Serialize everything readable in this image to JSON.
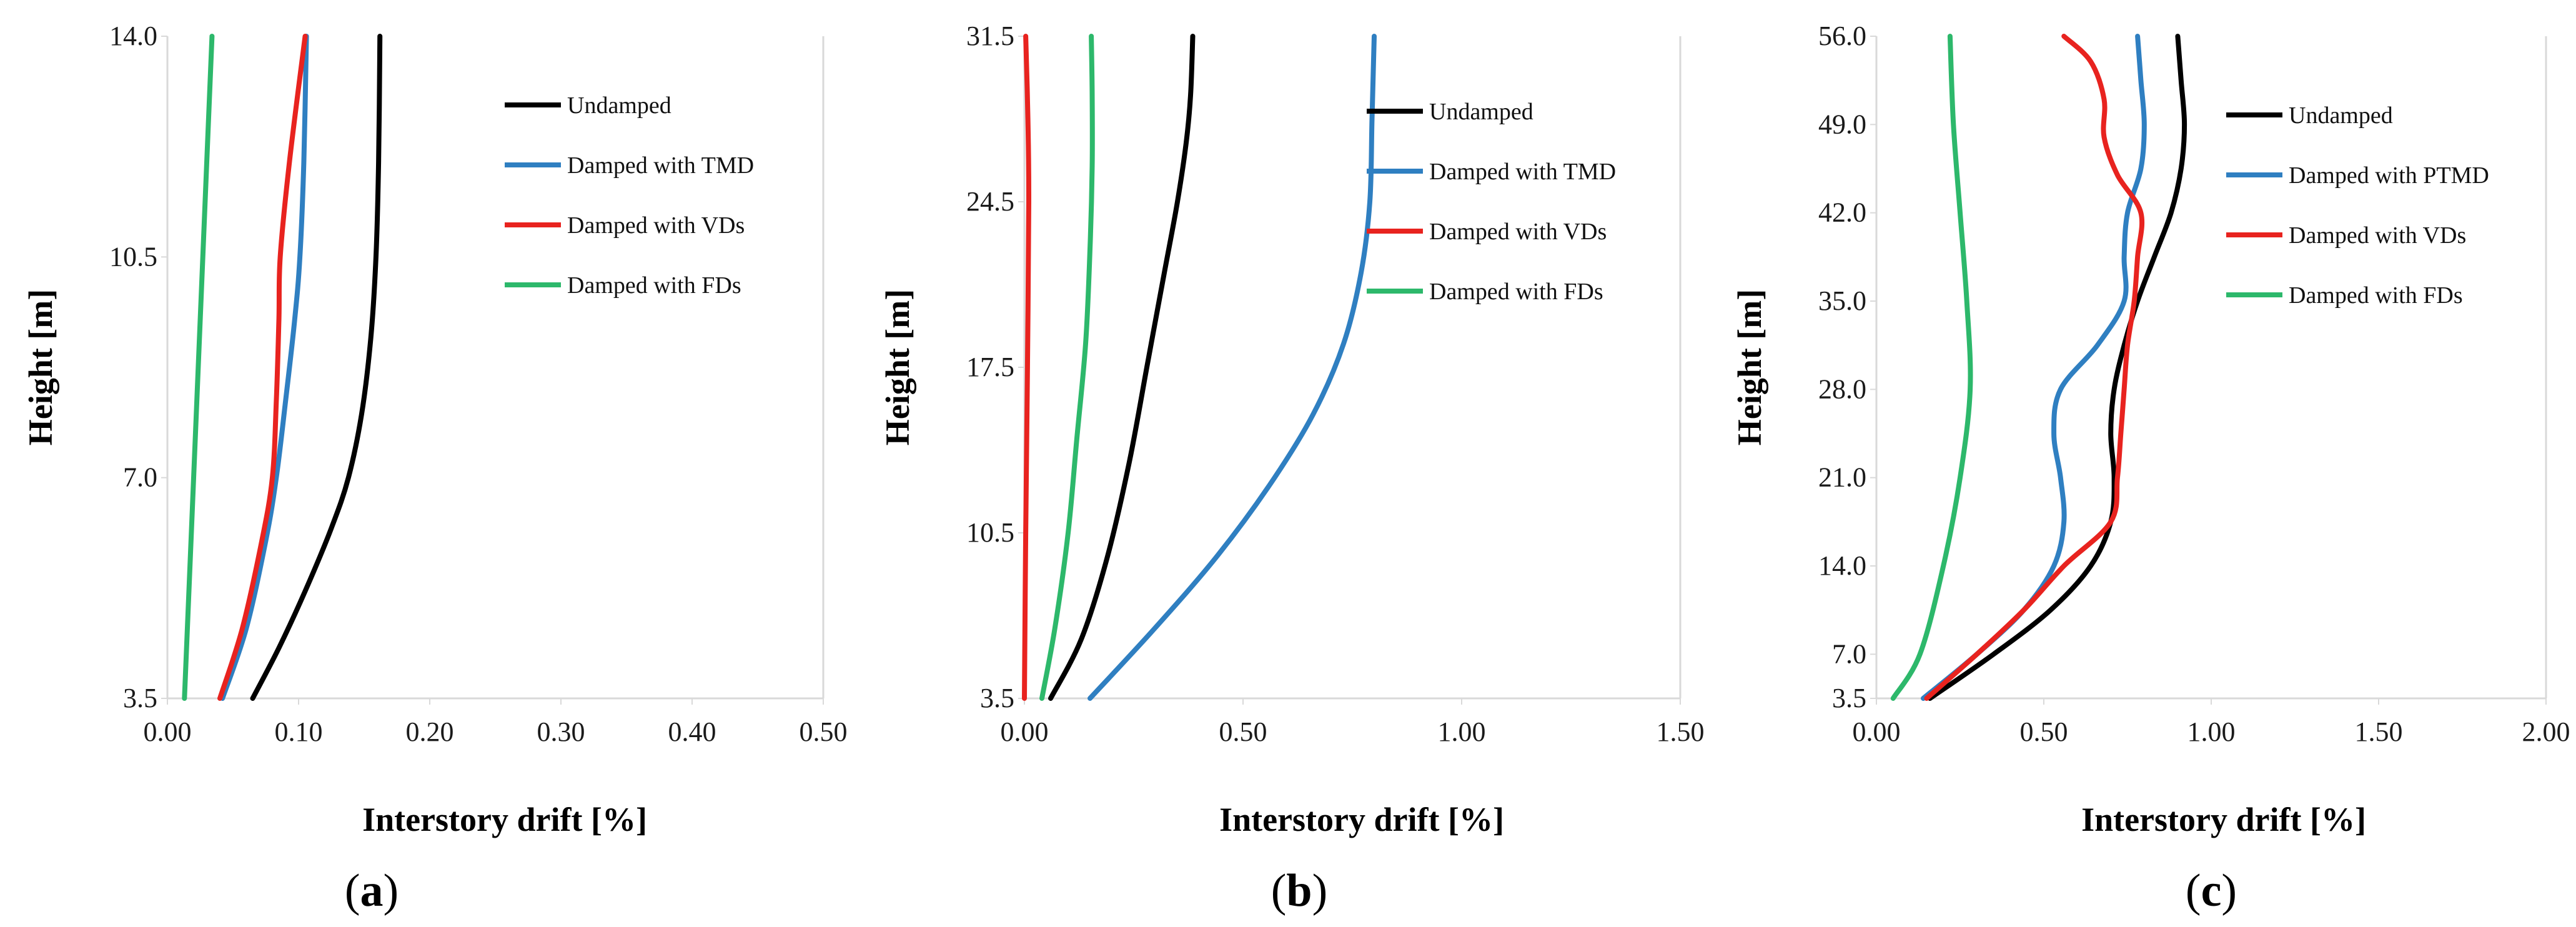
{
  "chart_data": [
    {
      "type": "line",
      "panel": "a",
      "title": "",
      "xlabel": "Interstory drift [%]",
      "ylabel": "Height [m]",
      "xlim": [
        0,
        0.5
      ],
      "ylim": [
        3.5,
        14.0
      ],
      "xtick_values": [
        0,
        0.1,
        0.2,
        0.3,
        0.4,
        0.5
      ],
      "xticks": [
        "0.00",
        "0.10",
        "0.20",
        "0.30",
        "0.40",
        "0.50"
      ],
      "ytick_values": [
        3.5,
        7.0,
        10.5,
        14.0
      ],
      "yticks": [
        "3.5",
        "7.0",
        "10.5",
        "14.0"
      ],
      "legend_position": "top-right",
      "series": [
        {
          "name": "Undamped",
          "color": "#000000",
          "points": [
            [
              0.065,
              3.5
            ],
            [
              0.085,
              4.3
            ],
            [
              0.105,
              5.2
            ],
            [
              0.125,
              6.2
            ],
            [
              0.138,
              7.0
            ],
            [
              0.148,
              8.0
            ],
            [
              0.155,
              9.2
            ],
            [
              0.159,
              10.5
            ],
            [
              0.161,
              12.0
            ],
            [
              0.162,
              14.0
            ]
          ]
        },
        {
          "name": "Damped with TMD",
          "color": "#2f7fc1",
          "points": [
            [
              0.042,
              3.5
            ],
            [
              0.06,
              4.6
            ],
            [
              0.075,
              6.0
            ],
            [
              0.083,
              7.0
            ],
            [
              0.09,
              8.2
            ],
            [
              0.097,
              9.5
            ],
            [
              0.101,
              10.5
            ],
            [
              0.104,
              12.0
            ],
            [
              0.106,
              14.0
            ]
          ]
        },
        {
          "name": "Damped with VDs",
          "color": "#e8231f",
          "points": [
            [
              0.04,
              3.5
            ],
            [
              0.057,
              4.6
            ],
            [
              0.072,
              6.0
            ],
            [
              0.08,
              7.0
            ],
            [
              0.083,
              8.2
            ],
            [
              0.085,
              9.5
            ],
            [
              0.086,
              10.5
            ],
            [
              0.093,
              12.0
            ],
            [
              0.105,
              14.0
            ]
          ]
        },
        {
          "name": "Damped with FDs",
          "color": "#2db86b",
          "points": [
            [
              0.013,
              3.5
            ],
            [
              0.02,
              7.0
            ],
            [
              0.027,
              10.5
            ],
            [
              0.034,
              14.0
            ]
          ]
        }
      ]
    },
    {
      "type": "line",
      "panel": "b",
      "title": "",
      "xlabel": "Interstory drift [%]",
      "ylabel": "Height [m]",
      "xlim": [
        0,
        1.5
      ],
      "ylim": [
        3.5,
        31.5
      ],
      "xtick_values": [
        0,
        0.5,
        1.0,
        1.5
      ],
      "xticks": [
        "0.00",
        "0.50",
        "1.00",
        "1.50"
      ],
      "ytick_values": [
        3.5,
        10.5,
        17.5,
        24.5,
        31.5
      ],
      "yticks": [
        "3.5",
        "10.5",
        "17.5",
        "24.5",
        "31.5"
      ],
      "legend_position": "top-right",
      "series": [
        {
          "name": "Undamped",
          "color": "#000000",
          "points": [
            [
              0.06,
              3.5
            ],
            [
              0.13,
              6.0
            ],
            [
              0.19,
              9.5
            ],
            [
              0.24,
              13.5
            ],
            [
              0.28,
              17.5
            ],
            [
              0.32,
              21.5
            ],
            [
              0.35,
              24.5
            ],
            [
              0.37,
              27.0
            ],
            [
              0.38,
              29.0
            ],
            [
              0.385,
              31.5
            ]
          ]
        },
        {
          "name": "Damped with TMD",
          "color": "#2f7fc1",
          "points": [
            [
              0.15,
              3.5
            ],
            [
              0.3,
              6.5
            ],
            [
              0.44,
              9.5
            ],
            [
              0.56,
              12.5
            ],
            [
              0.66,
              15.5
            ],
            [
              0.73,
              18.5
            ],
            [
              0.77,
              21.5
            ],
            [
              0.79,
              24.5
            ],
            [
              0.795,
              28.0
            ],
            [
              0.8,
              31.5
            ]
          ]
        },
        {
          "name": "Damped with VDs",
          "color": "#e8231f",
          "points": [
            [
              0.0,
              3.5
            ],
            [
              0.003,
              10.5
            ],
            [
              0.007,
              17.5
            ],
            [
              0.01,
              24.5
            ],
            [
              0.008,
              28.0
            ],
            [
              0.003,
              31.5
            ]
          ]
        },
        {
          "name": "Damped with FDs",
          "color": "#2db86b",
          "points": [
            [
              0.04,
              3.5
            ],
            [
              0.07,
              6.5
            ],
            [
              0.1,
              10.5
            ],
            [
              0.12,
              14.5
            ],
            [
              0.14,
              18.5
            ],
            [
              0.15,
              22.5
            ],
            [
              0.155,
              26.0
            ],
            [
              0.155,
              29.0
            ],
            [
              0.153,
              31.5
            ]
          ]
        }
      ]
    },
    {
      "type": "line",
      "panel": "c",
      "title": "",
      "xlabel": "Interstory drift [%]",
      "ylabel": "Height [m]",
      "xlim": [
        0,
        2.0
      ],
      "ylim": [
        3.5,
        56.0
      ],
      "xtick_values": [
        0,
        0.5,
        1.0,
        1.5,
        2.0
      ],
      "xticks": [
        "0.00",
        "0.50",
        "1.00",
        "1.50",
        "2.00"
      ],
      "ytick_values": [
        3.5,
        7.0,
        14.0,
        21.0,
        28.0,
        35.0,
        42.0,
        49.0,
        56.0
      ],
      "yticks": [
        "3.5",
        "7.0",
        "14.0",
        "21.0",
        "28.0",
        "35.0",
        "42.0",
        "49.0",
        "56.0"
      ],
      "legend_position": "top-right",
      "series": [
        {
          "name": "Undamped",
          "color": "#000000",
          "points": [
            [
              0.16,
              3.5
            ],
            [
              0.35,
              7.0
            ],
            [
              0.52,
              10.5
            ],
            [
              0.64,
              14.0
            ],
            [
              0.7,
              17.5
            ],
            [
              0.71,
              21.0
            ],
            [
              0.7,
              24.5
            ],
            [
              0.71,
              28.0
            ],
            [
              0.74,
              31.5
            ],
            [
              0.78,
              35.0
            ],
            [
              0.83,
              38.5
            ],
            [
              0.88,
              42.0
            ],
            [
              0.91,
              45.5
            ],
            [
              0.92,
              49.0
            ],
            [
              0.91,
              52.5
            ],
            [
              0.9,
              56.0
            ]
          ]
        },
        {
          "name": "Damped with PTMD",
          "color": "#2f7fc1",
          "points": [
            [
              0.14,
              3.5
            ],
            [
              0.3,
              7.0
            ],
            [
              0.44,
              10.5
            ],
            [
              0.53,
              14.0
            ],
            [
              0.56,
              17.5
            ],
            [
              0.55,
              21.0
            ],
            [
              0.53,
              24.5
            ],
            [
              0.55,
              28.0
            ],
            [
              0.66,
              31.5
            ],
            [
              0.74,
              35.0
            ],
            [
              0.74,
              38.5
            ],
            [
              0.75,
              42.0
            ],
            [
              0.79,
              45.5
            ],
            [
              0.8,
              49.0
            ],
            [
              0.79,
              52.5
            ],
            [
              0.78,
              56.0
            ]
          ]
        },
        {
          "name": "Damped with VDs",
          "color": "#e8231f",
          "points": [
            [
              0.15,
              3.5
            ],
            [
              0.3,
              7.0
            ],
            [
              0.44,
              10.5
            ],
            [
              0.56,
              14.0
            ],
            [
              0.7,
              17.5
            ],
            [
              0.72,
              21.0
            ],
            [
              0.73,
              24.5
            ],
            [
              0.74,
              28.0
            ],
            [
              0.75,
              31.5
            ],
            [
              0.77,
              35.0
            ],
            [
              0.78,
              38.5
            ],
            [
              0.79,
              42.0
            ],
            [
              0.72,
              45.0
            ],
            [
              0.68,
              48.0
            ],
            [
              0.68,
              51.0
            ],
            [
              0.64,
              54.0
            ],
            [
              0.56,
              56.0
            ]
          ]
        },
        {
          "name": "Damped with FDs",
          "color": "#2db86b",
          "points": [
            [
              0.05,
              3.5
            ],
            [
              0.13,
              7.0
            ],
            [
              0.2,
              14.0
            ],
            [
              0.25,
              21.0
            ],
            [
              0.28,
              28.0
            ],
            [
              0.27,
              35.0
            ],
            [
              0.25,
              42.0
            ],
            [
              0.23,
              49.0
            ],
            [
              0.22,
              56.0
            ]
          ]
        }
      ]
    }
  ],
  "panel_labels": [
    {
      "open": "(",
      "letter": "a",
      "close": ")"
    },
    {
      "open": "(",
      "letter": "b",
      "close": ")"
    },
    {
      "open": "(",
      "letter": "c",
      "close": ")"
    }
  ]
}
